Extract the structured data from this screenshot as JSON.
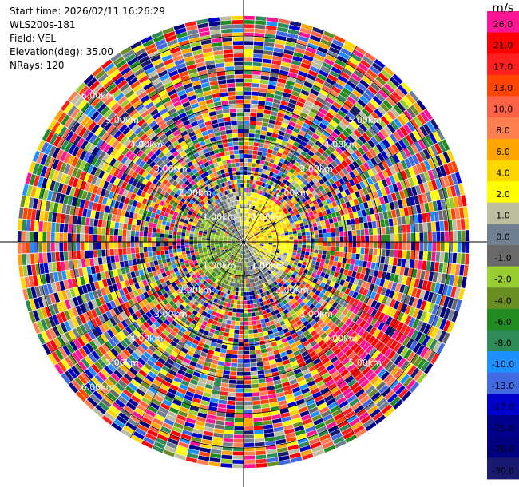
{
  "header": {
    "start_time": "Start time: 2026/02/11 16:26:29",
    "instrument": "WLS200s-181",
    "field": "Field: VEL",
    "elevation": "Elevation(deg): 35.00",
    "nrays": "NRays: 120"
  },
  "chart_data": {
    "type": "heatmap",
    "projection": "polar-ppi",
    "nrays": 120,
    "range_rings_km": [
      1,
      2,
      3,
      4,
      5,
      6
    ],
    "ring_label_text": [
      "1.00km",
      "2.00km",
      "3.00km",
      "4.00km",
      "5.00km",
      "6.00km"
    ],
    "max_range_km": 6.6,
    "colorbar": {
      "unit": "m/s",
      "tick_labels": [
        "26.0",
        "21.0",
        "17.0",
        "13.0",
        "10.0",
        "8.0",
        "6.0",
        "4.0",
        "2.0",
        "1.0",
        "0.0",
        "-1.0",
        "-2.0",
        "-4.0",
        "-6.0",
        "-8.0",
        "-10.0",
        "-13.0",
        "-17.0",
        "-21.0",
        "-26.0",
        "-30.0"
      ],
      "colors": [
        "#ff1493",
        "#ff0000",
        "#ff1f1f",
        "#ff4500",
        "#ff6347",
        "#ff7f50",
        "#ffa500",
        "#ffd700",
        "#ffff00",
        "#bdbd9f",
        "#708090",
        "#696969",
        "#9acd32",
        "#6b8e23",
        "#228b22",
        "#2e8b57",
        "#1e90ff",
        "#4169e1",
        "#0000cd",
        "#00008b",
        "#000080",
        "#191970"
      ]
    }
  }
}
